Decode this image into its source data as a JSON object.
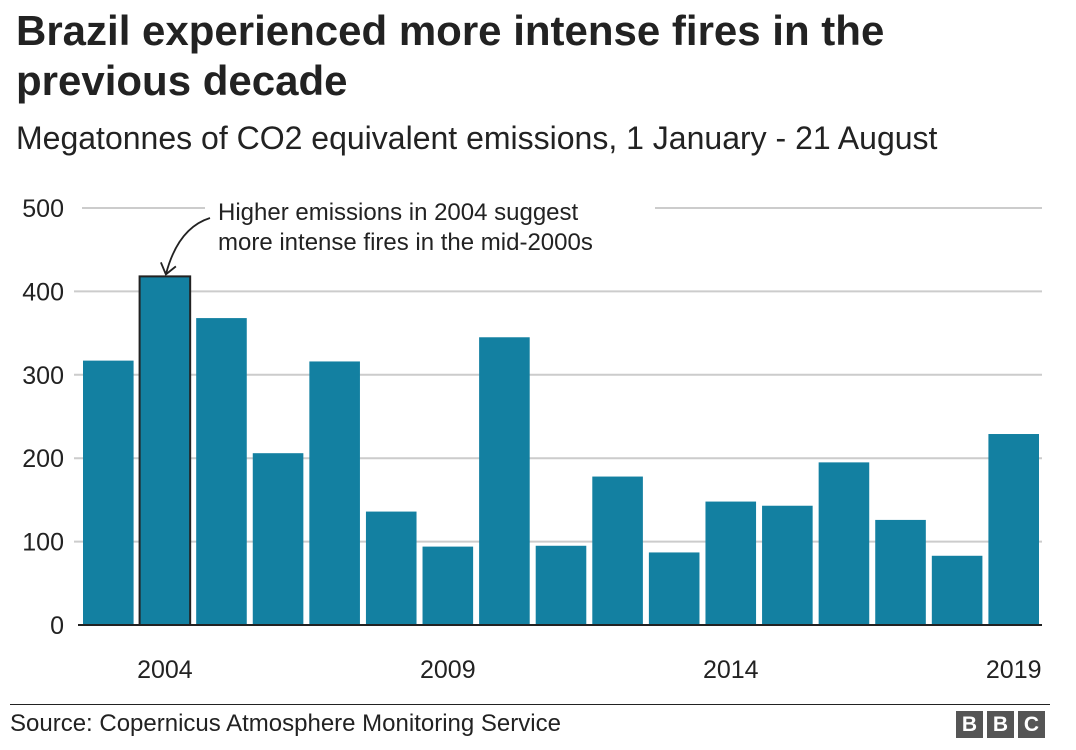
{
  "chart_data": {
    "type": "bar",
    "title": "Brazil experienced more intense fires in the previous decade",
    "subtitle": "Megatonnes of CO2 equivalent emissions, 1 January - 21 August",
    "xlabel": "",
    "ylabel": "",
    "categories": [
      "2003",
      "2004",
      "2005",
      "2006",
      "2007",
      "2008",
      "2009",
      "2010",
      "2011",
      "2012",
      "2013",
      "2014",
      "2015",
      "2016",
      "2017",
      "2018",
      "2019"
    ],
    "values": [
      317,
      418,
      368,
      206,
      316,
      136,
      94,
      345,
      95,
      178,
      87,
      148,
      143,
      195,
      126,
      83,
      229
    ],
    "x_tick_labels": [
      "2004",
      "2009",
      "2014",
      "2019"
    ],
    "y_ticks": [
      0,
      100,
      200,
      300,
      400,
      500
    ],
    "ylim": [
      0,
      500
    ],
    "grid": true,
    "highlighted_category": "2004",
    "bar_color": "#1380A1",
    "annotation": {
      "lines": [
        "Higher emissions in 2004 suggest",
        "more intense fires in the mid-2000s"
      ],
      "target": "2004"
    }
  },
  "footer": {
    "source": "Source: Copernicus Atmosphere Monitoring Service",
    "logo_letters": [
      "B",
      "B",
      "C"
    ]
  }
}
